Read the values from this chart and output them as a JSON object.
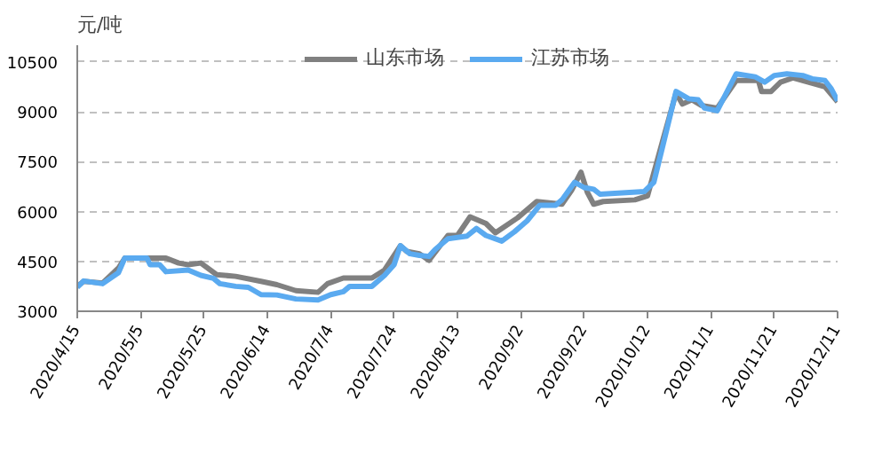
{
  "chart_data": {
    "type": "line",
    "ylabel": "元/吨",
    "legend": "top",
    "grid": "y",
    "line_style": "solid",
    "marker": "none",
    "xlim": [
      "2020-04-15",
      "2020-12-11"
    ],
    "xticks": [
      {
        "value": "2020-04-15",
        "label": "2020/4/15"
      },
      {
        "value": "2020-05-05",
        "label": "2020/5/5"
      },
      {
        "value": "2020-05-25",
        "label": "2020/5/25"
      },
      {
        "value": "2020-06-14",
        "label": "2020/6/14"
      },
      {
        "value": "2020-07-04",
        "label": "2020/7/4"
      },
      {
        "value": "2020-07-24",
        "label": "2020/7/24"
      },
      {
        "value": "2020-08-13",
        "label": "2020/8/13"
      },
      {
        "value": "2020-09-02",
        "label": "2020/9/2"
      },
      {
        "value": "2020-09-22",
        "label": "2020/9/22"
      },
      {
        "value": "2020-10-12",
        "label": "2020/10/12"
      },
      {
        "value": "2020-11-01",
        "label": "2020/11/1"
      },
      {
        "value": "2020-11-21",
        "label": "2020/11/21"
      },
      {
        "value": "2020-12-11",
        "label": "2020/12/11"
      }
    ],
    "ylim": [
      3000,
      11000
    ],
    "yticks": [
      3000,
      4500,
      6000,
      7500,
      9000,
      10500
    ],
    "series": [
      {
        "name": "山东市场",
        "color": "#808080",
        "x": [
          "2020-04-15",
          "2020-04-17",
          "2020-04-23",
          "2020-04-28",
          "2020-04-30",
          "2020-05-13",
          "2020-05-17",
          "2020-05-20",
          "2020-05-24",
          "2020-05-29",
          "2020-06-04",
          "2020-06-12",
          "2020-06-17",
          "2020-06-23",
          "2020-06-30",
          "2020-07-03",
          "2020-07-08",
          "2020-07-17",
          "2020-07-21",
          "2020-07-26",
          "2020-07-28",
          "2020-08-01",
          "2020-08-04",
          "2020-08-10",
          "2020-08-13",
          "2020-08-17",
          "2020-08-22",
          "2020-08-25",
          "2020-09-01",
          "2020-09-07",
          "2020-09-15",
          "2020-09-18",
          "2020-09-21",
          "2020-09-23",
          "2020-09-25",
          "2020-09-28",
          "2020-10-08",
          "2020-10-12",
          "2020-10-17",
          "2020-10-21",
          "2020-10-23",
          "2020-10-26",
          "2020-10-29",
          "2020-11-03",
          "2020-11-09",
          "2020-11-16",
          "2020-11-17",
          "2020-11-20",
          "2020-11-23",
          "2020-11-27",
          "2020-12-03",
          "2020-12-07",
          "2020-12-11"
        ],
        "values": [
          3750,
          3900,
          3850,
          4300,
          4600,
          4600,
          4450,
          4400,
          4450,
          4100,
          4050,
          3900,
          3800,
          3620,
          3570,
          3830,
          4000,
          4000,
          4240,
          4970,
          4800,
          4730,
          4530,
          5280,
          5280,
          5840,
          5640,
          5360,
          5810,
          6300,
          6220,
          6630,
          7180,
          6580,
          6220,
          6300,
          6350,
          6470,
          8200,
          9560,
          9230,
          9360,
          9190,
          9110,
          9940,
          9940,
          9610,
          9610,
          9890,
          10020,
          9860,
          9750,
          9300
        ]
      },
      {
        "name": "江苏市场",
        "color": "#5aaaf0",
        "x": [
          "2020-04-15",
          "2020-04-17",
          "2020-04-23",
          "2020-04-28",
          "2020-04-30",
          "2020-05-07",
          "2020-05-08",
          "2020-05-11",
          "2020-05-13",
          "2020-05-20",
          "2020-05-24",
          "2020-05-28",
          "2020-05-30",
          "2020-06-04",
          "2020-06-08",
          "2020-06-12",
          "2020-06-17",
          "2020-06-23",
          "2020-06-30",
          "2020-07-04",
          "2020-07-08",
          "2020-07-10",
          "2020-07-17",
          "2020-07-21",
          "2020-07-24",
          "2020-07-26",
          "2020-07-29",
          "2020-08-01",
          "2020-08-04",
          "2020-08-06",
          "2020-08-10",
          "2020-08-16",
          "2020-08-19",
          "2020-08-22",
          "2020-08-27",
          "2020-08-31",
          "2020-09-04",
          "2020-09-08",
          "2020-09-13",
          "2020-09-15",
          "2020-09-19",
          "2020-09-22",
          "2020-09-25",
          "2020-09-27",
          "2020-10-11",
          "2020-10-14",
          "2020-10-17",
          "2020-10-21",
          "2020-10-25",
          "2020-10-28",
          "2020-10-30",
          "2020-11-03",
          "2020-11-09",
          "2020-11-15",
          "2020-11-18",
          "2020-11-21",
          "2020-11-25",
          "2020-11-30",
          "2020-12-03",
          "2020-12-07",
          "2020-12-09",
          "2020-12-11"
        ],
        "values": [
          3720,
          3910,
          3830,
          4160,
          4600,
          4600,
          4400,
          4400,
          4190,
          4240,
          4080,
          3990,
          3830,
          3750,
          3720,
          3500,
          3490,
          3370,
          3340,
          3500,
          3590,
          3750,
          3750,
          4080,
          4400,
          4970,
          4730,
          4680,
          4650,
          4860,
          5180,
          5260,
          5490,
          5280,
          5110,
          5390,
          5720,
          6190,
          6190,
          6350,
          6880,
          6720,
          6670,
          6520,
          6600,
          6880,
          8040,
          9610,
          9390,
          9360,
          9110,
          9030,
          10140,
          10050,
          9890,
          10090,
          10140,
          10090,
          9990,
          9940,
          9690,
          9330
        ]
      }
    ]
  }
}
